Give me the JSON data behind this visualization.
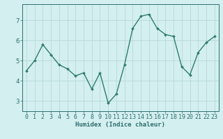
{
  "x": [
    0,
    1,
    2,
    3,
    4,
    5,
    6,
    7,
    8,
    9,
    10,
    11,
    12,
    13,
    14,
    15,
    16,
    17,
    18,
    19,
    20,
    21,
    22,
    23
  ],
  "y": [
    4.5,
    5.0,
    5.8,
    5.3,
    4.8,
    4.6,
    4.25,
    4.4,
    3.6,
    4.4,
    2.9,
    3.35,
    4.8,
    6.6,
    7.2,
    7.3,
    6.6,
    6.3,
    6.2,
    4.7,
    4.3,
    5.4,
    5.9,
    6.2
  ],
  "line_color": "#2e7d6e",
  "marker": "D",
  "marker_size": 2,
  "line_width": 1.0,
  "bg_color": "#d4efef",
  "grid_color": "#b8d8d8",
  "xlabel": "Humidex (Indice chaleur)",
  "ylim": [
    2.5,
    7.8
  ],
  "xlim": [
    -0.5,
    23.5
  ],
  "yticks": [
    3,
    4,
    5,
    6,
    7
  ],
  "xticks": [
    0,
    1,
    2,
    3,
    4,
    5,
    6,
    7,
    8,
    9,
    10,
    11,
    12,
    13,
    14,
    15,
    16,
    17,
    18,
    19,
    20,
    21,
    22,
    23
  ],
  "xlabel_fontsize": 6.5,
  "tick_fontsize": 6.0,
  "axis_color": "#2e6e6e"
}
